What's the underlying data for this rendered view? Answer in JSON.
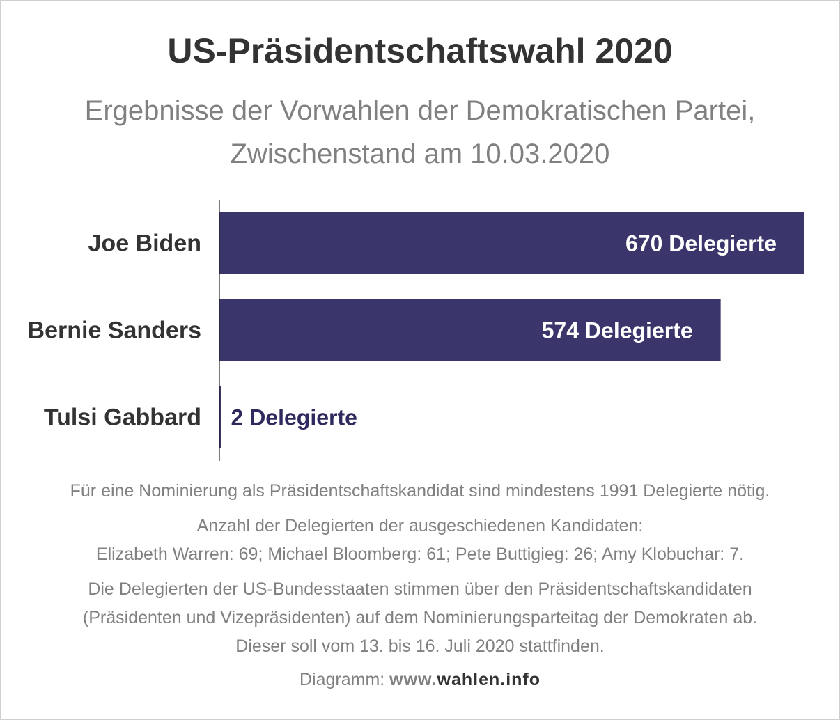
{
  "header": {
    "title": "US-Präsidentschaftswahl 2020",
    "subtitle_line1": "Ergebnisse der Vorwahlen der Demokratischen Partei,",
    "subtitle_line2": "Zwischenstand am 10.03.2020"
  },
  "chart_data": {
    "type": "bar",
    "orientation": "horizontal",
    "categories": [
      "Joe Biden",
      "Bernie Sanders",
      "Tulsi Gabbard"
    ],
    "values": [
      670,
      574,
      2
    ],
    "value_labels": [
      "670 Delegierte",
      "574 Delegierte",
      "2 Delegierte"
    ],
    "xlim": [
      0,
      670
    ],
    "grid": false,
    "bar_color": "#3a366b",
    "label_color_inside": "#ffffff",
    "label_color_outside": "#2e2a5e",
    "category_label_color": "#333333"
  },
  "notes": {
    "nomination": "Für eine Nominierung als Präsidentschaftskandidat sind mindestens 1991 Delegierte nötig.",
    "withdrawn_heading": "Anzahl der Delegierten der ausgeschiedenen Kandidaten:",
    "withdrawn_list": "Elizabeth Warren: 69; Michael Bloomberg: 61; Pete Buttigieg: 26; Amy Klobuchar: 7.",
    "convention_line1": "Die Delegierten der US-Bundesstaaten stimmen über den Präsidentschaftskandidaten",
    "convention_line2": "(Präsidenten und Vizepräsidenten) auf dem Nominierungsparteitag der Demokraten ab.",
    "convention_line3": "Dieser soll vom 13. bis 16. Juli 2020 stattfinden."
  },
  "credit": {
    "prefix": "Diagramm: ",
    "site_part1": "www.",
    "site_part2": "wahlen.info"
  }
}
